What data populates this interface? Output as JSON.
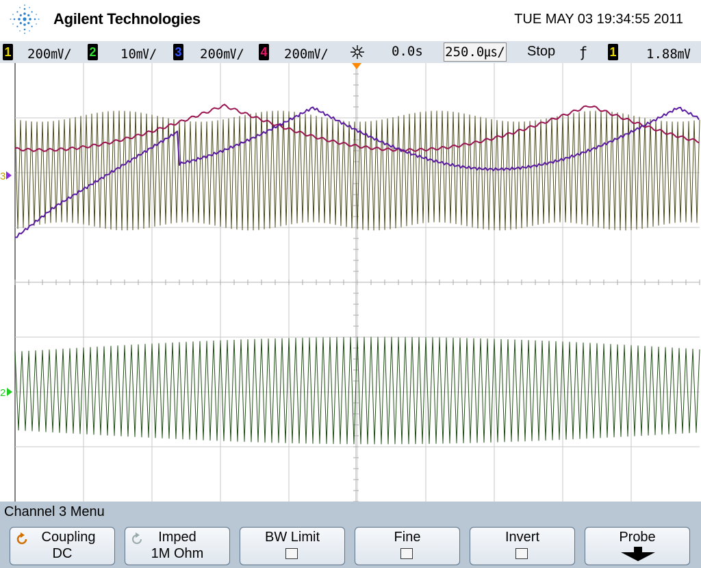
{
  "header": {
    "brand": "Agilent Technologies",
    "datetime": "TUE MAY 03 19:34:55 2011"
  },
  "status": {
    "ch1": {
      "num": "1",
      "scale": "200㎷/",
      "color": "#e8d800"
    },
    "ch2": {
      "num": "2",
      "scale": "10㎷/",
      "color": "#33dd33"
    },
    "ch3": {
      "num": "3",
      "scale": "200㎷/",
      "color": "#2244dd"
    },
    "ch4": {
      "num": "4",
      "scale": "200㎷/",
      "color": "#e8186a"
    },
    "delay": "0.0s",
    "timebase": "250.0㎲/",
    "run_state": "Stop",
    "trigger_slope": "ƒ",
    "trigger_source": "1",
    "trigger_level": "1.88㎷"
  },
  "waveform_colors": {
    "ch1": "#4a4a18",
    "ch2": "#1d4d12",
    "ch3": "#5a1aa0",
    "ch4": "#9a1450",
    "grid": "#c8c8c8",
    "trigger_marker": "#ff8800"
  },
  "markers": {
    "ch3_label": "3",
    "ch2_label": "2"
  },
  "menu": {
    "title": "Channel 3  Menu",
    "softkeys": [
      {
        "line1": "Coupling",
        "line2": "DC",
        "icon": "rotate-icon"
      },
      {
        "line1": "Imped",
        "line2": "1M Ohm",
        "icon": "rotate-icon"
      },
      {
        "line1": "BW Limit",
        "checkbox": false
      },
      {
        "line1": "Fine",
        "checkbox": false
      },
      {
        "line1": "Invert",
        "checkbox": false
      },
      {
        "line1": "Probe",
        "icon": "down-arrow-icon"
      }
    ]
  }
}
